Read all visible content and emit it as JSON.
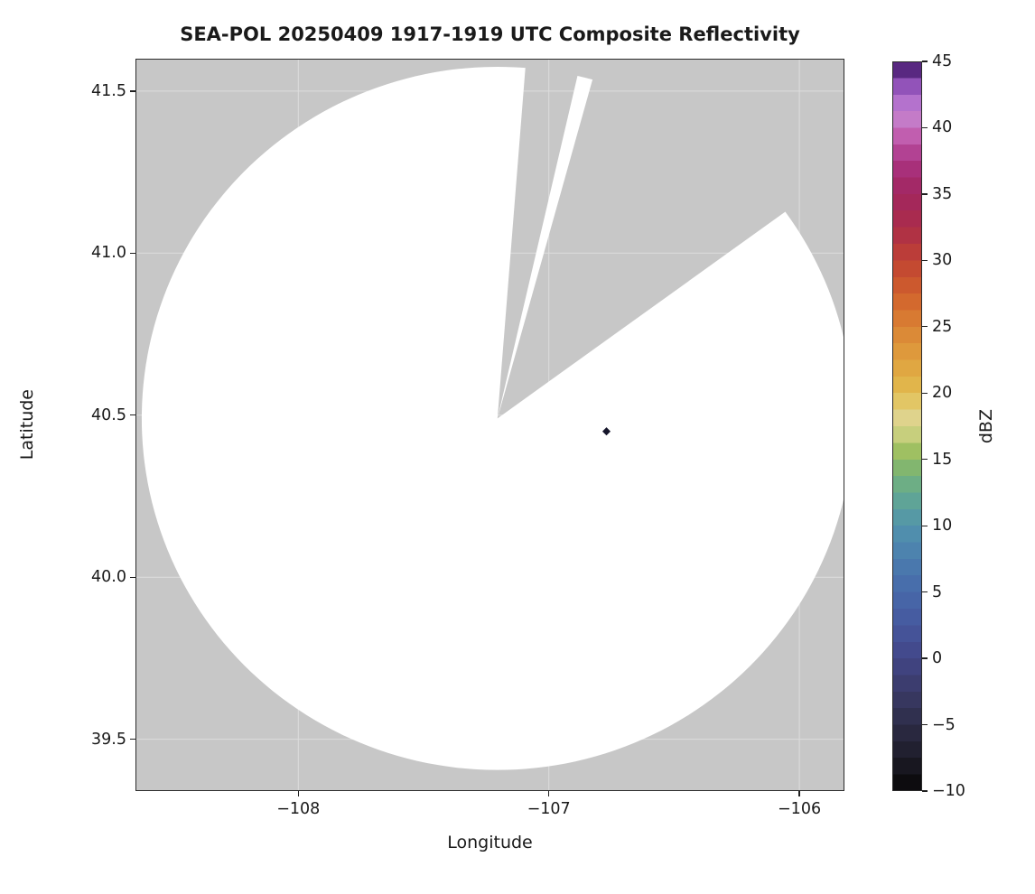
{
  "figure": {
    "title": "SEA-POL 20250409 1917-1919 UTC Composite Reflectivity",
    "xlabel": "Longitude",
    "ylabel": "Latitude",
    "colorbar_label": "dBZ"
  },
  "chart_data": {
    "type": "heatmap",
    "subtype": "radar-composite-reflectivity-map",
    "title": "SEA-POL 20250409 1917-1919 UTC Composite Reflectivity",
    "xlabel": "Longitude",
    "ylabel": "Latitude",
    "xlim": [
      -108.65,
      -105.82
    ],
    "ylim": [
      39.34,
      41.6
    ],
    "grid": true,
    "xticks": {
      "values": [
        -108,
        -107,
        -106
      ],
      "labels": [
        "−108",
        "−107",
        "−106"
      ]
    },
    "yticks": {
      "values": [
        39.5,
        40.0,
        40.5,
        41.0,
        41.5
      ],
      "labels": [
        "39.5",
        "40.0",
        "40.5",
        "41.0",
        "41.5"
      ]
    },
    "style": {
      "nodata_color": "#c7c7c7",
      "coverage_color": "#ffffff",
      "grid_color": "#dddddd",
      "frame_color": "#2b2b2b",
      "text_color": "#1a1a1a"
    },
    "radar": {
      "center": {
        "lon": -107.205,
        "lat": 40.49
      },
      "range_lon_deg": 1.42,
      "range_lat_deg": 1.085,
      "missing_sectors_az_deg": [
        [
          4.5,
          13
        ],
        [
          15.5,
          54
        ]
      ]
    },
    "echo_marker": {
      "lon": -106.77,
      "lat": 40.45,
      "marker": "diamond",
      "color": "#15152b"
    },
    "colorbar": {
      "label": "dBZ",
      "min": -10,
      "max": 45,
      "ticks": {
        "values": [
          45,
          40,
          35,
          30,
          25,
          20,
          15,
          10,
          5,
          0,
          -5,
          -10
        ],
        "labels": [
          "45",
          "40",
          "35",
          "30",
          "25",
          "20",
          "15",
          "10",
          "5",
          "0",
          "−5",
          "−10"
        ]
      },
      "colormap_stops": [
        {
          "value": -10,
          "color": "#070707"
        },
        {
          "value": -7.5,
          "color": "#1d1c28"
        },
        {
          "value": -5,
          "color": "#2d2c47"
        },
        {
          "value": -2.5,
          "color": "#3a3a67"
        },
        {
          "value": 0,
          "color": "#424687"
        },
        {
          "value": 2.5,
          "color": "#46579e"
        },
        {
          "value": 5,
          "color": "#4769aa"
        },
        {
          "value": 7.5,
          "color": "#4b7dae"
        },
        {
          "value": 10,
          "color": "#5293ac"
        },
        {
          "value": 12.5,
          "color": "#63aa90"
        },
        {
          "value": 15,
          "color": "#8cba64"
        },
        {
          "value": 16.3,
          "color": "#b3c75f"
        },
        {
          "value": 17.5,
          "color": "#ddd79d"
        },
        {
          "value": 18.8,
          "color": "#e2cf79"
        },
        {
          "value": 20,
          "color": "#e2bc4f"
        },
        {
          "value": 22.5,
          "color": "#dfa03e"
        },
        {
          "value": 25,
          "color": "#da8234"
        },
        {
          "value": 27.5,
          "color": "#d0602c"
        },
        {
          "value": 30,
          "color": "#c04233"
        },
        {
          "value": 32.5,
          "color": "#ab2c49"
        },
        {
          "value": 35,
          "color": "#a1275f"
        },
        {
          "value": 36.5,
          "color": "#a52b72"
        },
        {
          "value": 38,
          "color": "#b13f90"
        },
        {
          "value": 39.5,
          "color": "#c261b2"
        },
        {
          "value": 41,
          "color": "#c583cf"
        },
        {
          "value": 42.5,
          "color": "#a766cb"
        },
        {
          "value": 43.8,
          "color": "#7b3fa6"
        },
        {
          "value": 45,
          "color": "#341059"
        }
      ]
    }
  }
}
